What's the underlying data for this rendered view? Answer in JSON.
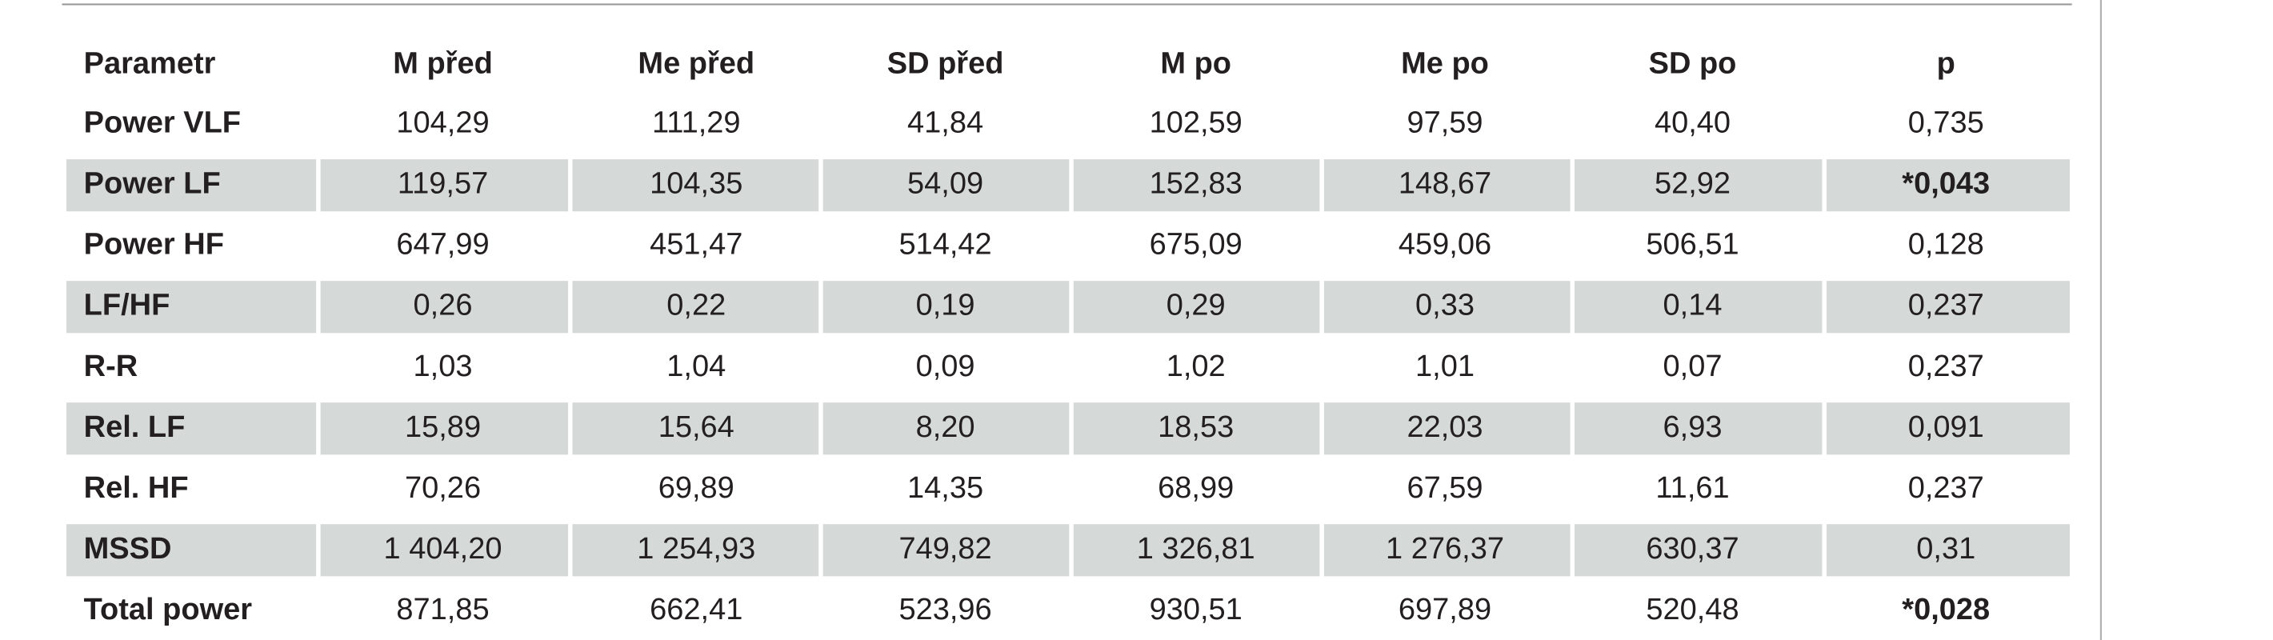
{
  "table": {
    "columns": [
      "Parametr",
      "M před",
      "Me před",
      "SD před",
      "M po",
      "Me po",
      "SD po",
      "p"
    ],
    "rows": [
      [
        "Power VLF",
        "104,29",
        "111,29",
        "41,84",
        "102,59",
        "97,59",
        "40,40",
        "0,735"
      ],
      [
        "Power LF",
        "119,57",
        "104,35",
        "54,09",
        "152,83",
        "148,67",
        "52,92",
        "*0,043"
      ],
      [
        "Power HF",
        "647,99",
        "451,47",
        "514,42",
        "675,09",
        "459,06",
        "506,51",
        "0,128"
      ],
      [
        "LF/HF",
        "0,26",
        "0,22",
        "0,19",
        "0,29",
        "0,33",
        "0,14",
        "0,237"
      ],
      [
        "R-R",
        "1,03",
        "1,04",
        "0,09",
        "1,02",
        "1,01",
        "0,07",
        "0,237"
      ],
      [
        "Rel. LF",
        "15,89",
        "15,64",
        "8,20",
        "18,53",
        "22,03",
        "6,93",
        "0,091"
      ],
      [
        "Rel. HF",
        "70,26",
        "69,89",
        "14,35",
        "68,99",
        "67,59",
        "11,61",
        "0,237"
      ],
      [
        "MSSD",
        "1 404,20",
        "1 254,93",
        "749,82",
        "1 326,81",
        "1 276,37",
        "630,37",
        "0,31"
      ],
      [
        "Total power",
        "871,85",
        "662,41",
        "523,96",
        "930,51",
        "697,89",
        "520,48",
        "*0,028"
      ]
    ]
  }
}
